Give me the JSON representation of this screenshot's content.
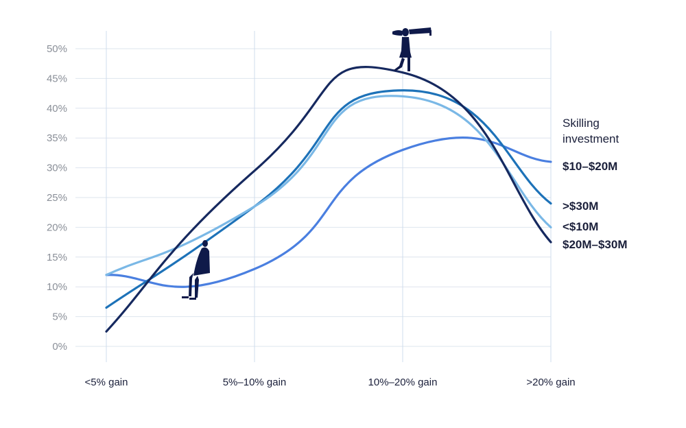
{
  "chart_data": {
    "type": "line",
    "categories": [
      "<5% gain",
      "5%–10% gain",
      "10%–20% gain",
      ">20% gain"
    ],
    "y_ticks": [
      "0%",
      "5%",
      "10%",
      "15%",
      "20%",
      "25%",
      "30%",
      "35%",
      "40%",
      "45%",
      "50%"
    ],
    "ylim": [
      0,
      50
    ],
    "grid": true,
    "legend_title": "Skilling investment",
    "legend_position": "right",
    "series": [
      {
        "name": "$10–$20M",
        "color": "#4a7fe0",
        "values": [
          12,
          13,
          33,
          31
        ]
      },
      {
        "name": ">$30M",
        "color": "#1d72b8",
        "values": [
          6.5,
          23.5,
          43,
          24
        ]
      },
      {
        "name": "<$10M",
        "color": "#7ab8e6",
        "values": [
          12,
          23.5,
          42,
          20
        ]
      },
      {
        "name": "$20M–$30M",
        "color": "#16295f",
        "values": [
          2.5,
          29.5,
          46,
          17.5
        ]
      }
    ],
    "icons": [
      "sitting-person-icon",
      "person-with-telescope-icon"
    ]
  }
}
